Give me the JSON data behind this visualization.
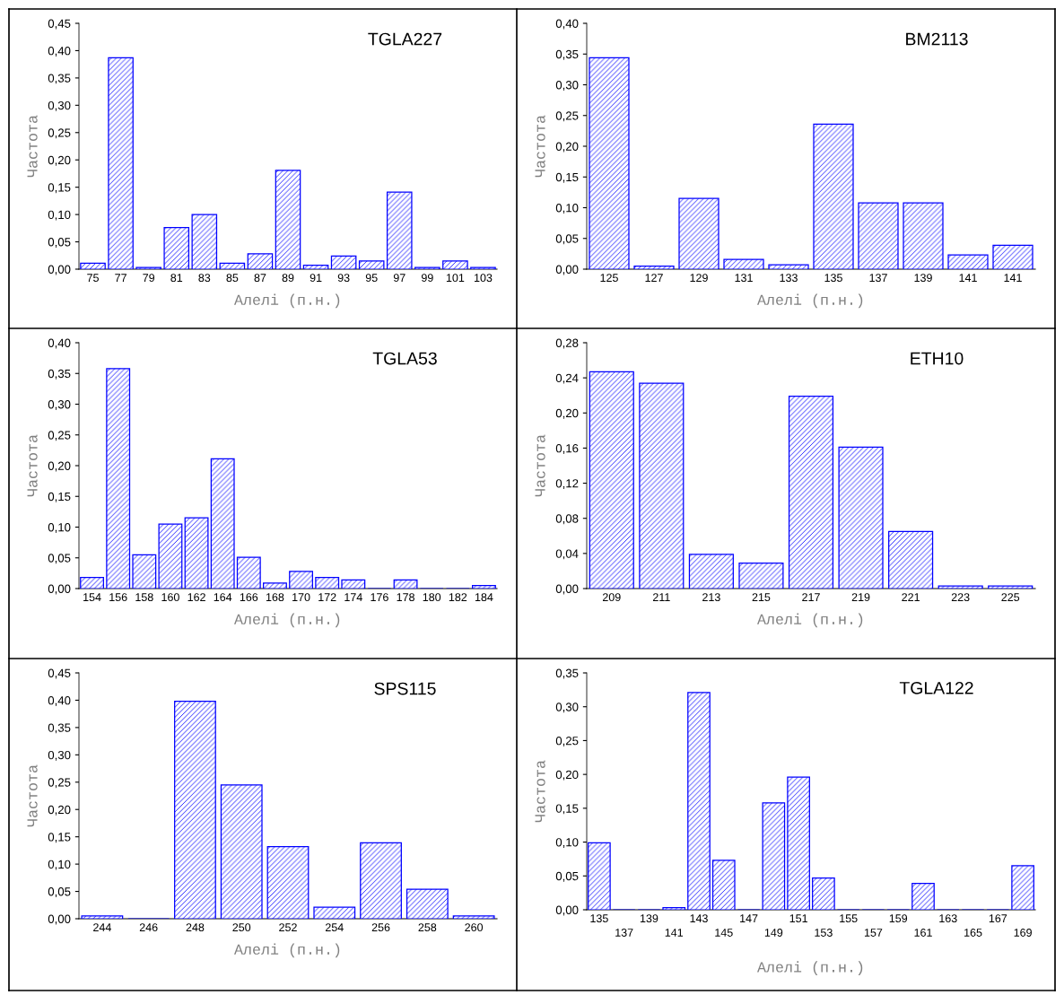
{
  "chart_data": [
    {
      "type": "bar",
      "title": "TGLA227",
      "xlabel": "Алелі (п.н.)",
      "ylabel": "Частота",
      "color": "#0000ff",
      "categories": [
        "75",
        "77",
        "79",
        "81",
        "83",
        "85",
        "87",
        "89",
        "91",
        "93",
        "95",
        "97",
        "99",
        "101",
        "103"
      ],
      "values": [
        0.011,
        0.387,
        0.003,
        0.076,
        0.1,
        0.011,
        0.028,
        0.181,
        0.007,
        0.024,
        0.015,
        0.141,
        0.003,
        0.015,
        0.003
      ],
      "ylim": [
        0,
        0.45
      ],
      "yticks": [
        {
          "value": 0,
          "label": "0,00"
        },
        {
          "value": 0.05,
          "label": "0,05"
        },
        {
          "value": 0.1,
          "label": "0,10"
        },
        {
          "value": 0.15,
          "label": "0,15"
        },
        {
          "value": 0.2,
          "label": "0,20"
        },
        {
          "value": 0.25,
          "label": "0,25"
        },
        {
          "value": 0.3,
          "label": "0,30"
        },
        {
          "value": 0.35,
          "label": "0,35"
        },
        {
          "value": 0.4,
          "label": "0,40"
        },
        {
          "value": 0.45,
          "label": "0,45"
        }
      ]
    },
    {
      "type": "bar",
      "title": "BM2113",
      "xlabel": "Алелі (п.н.)",
      "ylabel": "Частота",
      "color": "#0000ff",
      "categories": [
        "125",
        "127",
        "129",
        "131",
        "133",
        "135",
        "137",
        "139",
        "141",
        "141"
      ],
      "values": [
        0.344,
        0.005,
        0.115,
        0.016,
        0.007,
        0.236,
        0.108,
        0.108,
        0.023,
        0.039
      ],
      "ylim": [
        0,
        0.4
      ],
      "yticks": [
        {
          "value": 0,
          "label": "0,00"
        },
        {
          "value": 0.05,
          "label": "0,05"
        },
        {
          "value": 0.1,
          "label": "0,10"
        },
        {
          "value": 0.15,
          "label": "0,15"
        },
        {
          "value": 0.2,
          "label": "0,20"
        },
        {
          "value": 0.25,
          "label": "0,25"
        },
        {
          "value": 0.3,
          "label": "0,30"
        },
        {
          "value": 0.35,
          "label": "0,35"
        },
        {
          "value": 0.4,
          "label": "0,40"
        }
      ]
    },
    {
      "type": "bar",
      "title": "TGLA53",
      "xlabel": "Алелі (п.н.)",
      "ylabel": "Частота",
      "color": "#0000ff",
      "categories": [
        "154",
        "156",
        "158",
        "160",
        "162",
        "164",
        "166",
        "168",
        "170",
        "172",
        "174",
        "176",
        "178",
        "180",
        "182",
        "184"
      ],
      "values": [
        0.018,
        0.358,
        0.055,
        0.105,
        0.115,
        0.211,
        0.051,
        0.009,
        0.028,
        0.018,
        0.014,
        0,
        0.014,
        0,
        0,
        0.005
      ],
      "ylim": [
        0,
        0.4
      ],
      "yticks": [
        {
          "value": 0,
          "label": "0,00"
        },
        {
          "value": 0.05,
          "label": "0,05"
        },
        {
          "value": 0.1,
          "label": "0,10"
        },
        {
          "value": 0.15,
          "label": "0,15"
        },
        {
          "value": 0.2,
          "label": "0,20"
        },
        {
          "value": 0.25,
          "label": "0,25"
        },
        {
          "value": 0.3,
          "label": "0,30"
        },
        {
          "value": 0.35,
          "label": "0,35"
        },
        {
          "value": 0.4,
          "label": "0,40"
        }
      ]
    },
    {
      "type": "bar",
      "title": "ETH10",
      "xlabel": "Алелі (п.н.)",
      "ylabel": "Частота",
      "color": "#0000ff",
      "categories": [
        "209",
        "211",
        "213",
        "215",
        "217",
        "219",
        "221",
        "223",
        "225"
      ],
      "values": [
        0.247,
        0.234,
        0.039,
        0.029,
        0.219,
        0.161,
        0.065,
        0.003,
        0.003
      ],
      "ylim": [
        0,
        0.28
      ],
      "yticks": [
        {
          "value": 0,
          "label": "0,00"
        },
        {
          "value": 0.04,
          "label": "0,04"
        },
        {
          "value": 0.08,
          "label": "0,08"
        },
        {
          "value": 0.12,
          "label": "0,12"
        },
        {
          "value": 0.16,
          "label": "0,16"
        },
        {
          "value": 0.2,
          "label": "0,20"
        },
        {
          "value": 0.24,
          "label": "0,24"
        },
        {
          "value": 0.28,
          "label": "0,28"
        }
      ]
    },
    {
      "type": "bar",
      "title": "SPS115",
      "xlabel": "Алелі (п.н.)",
      "ylabel": "Частота",
      "color": "#0000ff",
      "categories": [
        "244",
        "246",
        "248",
        "250",
        "252",
        "254",
        "256",
        "258",
        "260"
      ],
      "values": [
        0.005,
        0,
        0.398,
        0.245,
        0.132,
        0.021,
        0.139,
        0.054,
        0.005
      ],
      "ylim": [
        0,
        0.45
      ],
      "yticks": [
        {
          "value": 0,
          "label": "0,00"
        },
        {
          "value": 0.05,
          "label": "0,05"
        },
        {
          "value": 0.1,
          "label": "0,10"
        },
        {
          "value": 0.15,
          "label": "0,15"
        },
        {
          "value": 0.2,
          "label": "0,20"
        },
        {
          "value": 0.25,
          "label": "0,25"
        },
        {
          "value": 0.3,
          "label": "0,30"
        },
        {
          "value": 0.35,
          "label": "0,35"
        },
        {
          "value": 0.4,
          "label": "0,40"
        },
        {
          "value": 0.45,
          "label": "0,45"
        }
      ]
    },
    {
      "type": "bar",
      "title": "TGLA122",
      "xlabel": "Алелі (п.н.)",
      "ylabel": "Частота",
      "color": "#0000ff",
      "categories": [
        "135",
        "137",
        "139",
        "141",
        "143",
        "145",
        "147",
        "149",
        "151",
        "153",
        "155",
        "157",
        "159",
        "161",
        "163",
        "165",
        "167",
        "169"
      ],
      "values": [
        0.099,
        0,
        0,
        0.003,
        0.321,
        0.073,
        0,
        0.158,
        0.196,
        0.047,
        0,
        0,
        0,
        0.039,
        0,
        0,
        0,
        0.065
      ],
      "ylim": [
        0,
        0.35
      ],
      "yticks": [
        {
          "value": 0,
          "label": "0,00"
        },
        {
          "value": 0.05,
          "label": "0,05"
        },
        {
          "value": 0.1,
          "label": "0,10"
        },
        {
          "value": 0.15,
          "label": "0,15"
        },
        {
          "value": 0.2,
          "label": "0,20"
        },
        {
          "value": 0.25,
          "label": "0,25"
        },
        {
          "value": 0.3,
          "label": "0,30"
        },
        {
          "value": 0.35,
          "label": "0,35"
        }
      ]
    }
  ]
}
